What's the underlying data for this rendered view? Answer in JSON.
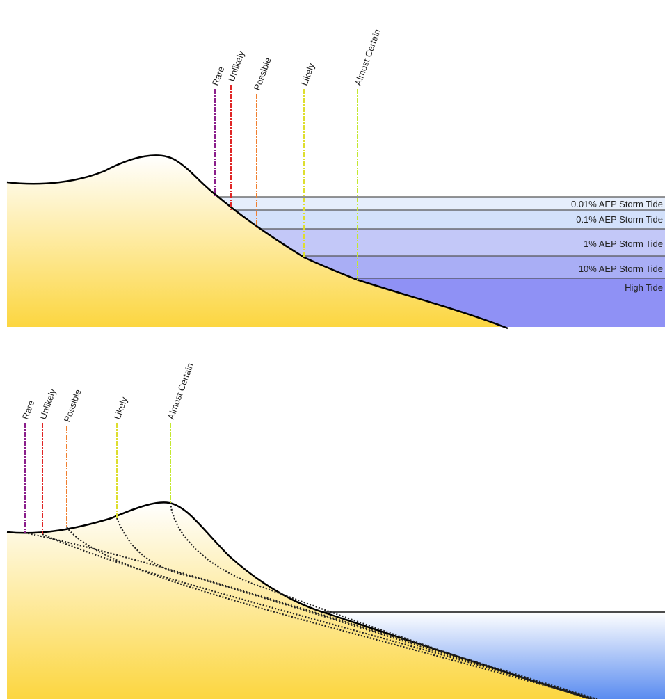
{
  "top_panel": {
    "likelihood_labels": [
      "Rare",
      "Unlikely",
      "Possible",
      "Likely",
      "Almost Certain"
    ],
    "water_levels": [
      "0.01% AEP Storm Tide",
      "0.1% AEP Storm Tide",
      "1% AEP Storm Tide",
      "10% AEP Storm Tide",
      "High Tide"
    ]
  },
  "bottom_panel": {
    "likelihood_labels": [
      "Rare",
      "Unlikely",
      "Possible",
      "Likely",
      "Almost Certain"
    ]
  }
}
